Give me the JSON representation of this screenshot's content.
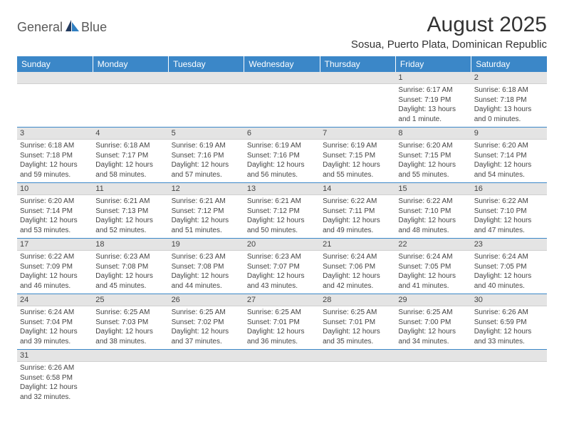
{
  "brand": {
    "name_part1": "General",
    "name_part2": "Blue"
  },
  "colors": {
    "header_bg": "#3b87c8",
    "header_text": "#ffffff",
    "daynum_bg": "#e4e4e4",
    "row_divider": "#3b87c8",
    "logo_dark": "#223a5e",
    "logo_blue": "#2f7fc2"
  },
  "title": "August 2025",
  "subtitle": "Sosua, Puerto Plata, Dominican Republic",
  "weekdays": [
    "Sunday",
    "Monday",
    "Tuesday",
    "Wednesday",
    "Thursday",
    "Friday",
    "Saturday"
  ],
  "first_weekday_index": 5,
  "days": [
    {
      "n": 1,
      "sunrise": "6:17 AM",
      "sunset": "7:19 PM",
      "daylight": "13 hours and 1 minute."
    },
    {
      "n": 2,
      "sunrise": "6:18 AM",
      "sunset": "7:18 PM",
      "daylight": "13 hours and 0 minutes."
    },
    {
      "n": 3,
      "sunrise": "6:18 AM",
      "sunset": "7:18 PM",
      "daylight": "12 hours and 59 minutes."
    },
    {
      "n": 4,
      "sunrise": "6:18 AM",
      "sunset": "7:17 PM",
      "daylight": "12 hours and 58 minutes."
    },
    {
      "n": 5,
      "sunrise": "6:19 AM",
      "sunset": "7:16 PM",
      "daylight": "12 hours and 57 minutes."
    },
    {
      "n": 6,
      "sunrise": "6:19 AM",
      "sunset": "7:16 PM",
      "daylight": "12 hours and 56 minutes."
    },
    {
      "n": 7,
      "sunrise": "6:19 AM",
      "sunset": "7:15 PM",
      "daylight": "12 hours and 55 minutes."
    },
    {
      "n": 8,
      "sunrise": "6:20 AM",
      "sunset": "7:15 PM",
      "daylight": "12 hours and 55 minutes."
    },
    {
      "n": 9,
      "sunrise": "6:20 AM",
      "sunset": "7:14 PM",
      "daylight": "12 hours and 54 minutes."
    },
    {
      "n": 10,
      "sunrise": "6:20 AM",
      "sunset": "7:14 PM",
      "daylight": "12 hours and 53 minutes."
    },
    {
      "n": 11,
      "sunrise": "6:21 AM",
      "sunset": "7:13 PM",
      "daylight": "12 hours and 52 minutes."
    },
    {
      "n": 12,
      "sunrise": "6:21 AM",
      "sunset": "7:12 PM",
      "daylight": "12 hours and 51 minutes."
    },
    {
      "n": 13,
      "sunrise": "6:21 AM",
      "sunset": "7:12 PM",
      "daylight": "12 hours and 50 minutes."
    },
    {
      "n": 14,
      "sunrise": "6:22 AM",
      "sunset": "7:11 PM",
      "daylight": "12 hours and 49 minutes."
    },
    {
      "n": 15,
      "sunrise": "6:22 AM",
      "sunset": "7:10 PM",
      "daylight": "12 hours and 48 minutes."
    },
    {
      "n": 16,
      "sunrise": "6:22 AM",
      "sunset": "7:10 PM",
      "daylight": "12 hours and 47 minutes."
    },
    {
      "n": 17,
      "sunrise": "6:22 AM",
      "sunset": "7:09 PM",
      "daylight": "12 hours and 46 minutes."
    },
    {
      "n": 18,
      "sunrise": "6:23 AM",
      "sunset": "7:08 PM",
      "daylight": "12 hours and 45 minutes."
    },
    {
      "n": 19,
      "sunrise": "6:23 AM",
      "sunset": "7:08 PM",
      "daylight": "12 hours and 44 minutes."
    },
    {
      "n": 20,
      "sunrise": "6:23 AM",
      "sunset": "7:07 PM",
      "daylight": "12 hours and 43 minutes."
    },
    {
      "n": 21,
      "sunrise": "6:24 AM",
      "sunset": "7:06 PM",
      "daylight": "12 hours and 42 minutes."
    },
    {
      "n": 22,
      "sunrise": "6:24 AM",
      "sunset": "7:05 PM",
      "daylight": "12 hours and 41 minutes."
    },
    {
      "n": 23,
      "sunrise": "6:24 AM",
      "sunset": "7:05 PM",
      "daylight": "12 hours and 40 minutes."
    },
    {
      "n": 24,
      "sunrise": "6:24 AM",
      "sunset": "7:04 PM",
      "daylight": "12 hours and 39 minutes."
    },
    {
      "n": 25,
      "sunrise": "6:25 AM",
      "sunset": "7:03 PM",
      "daylight": "12 hours and 38 minutes."
    },
    {
      "n": 26,
      "sunrise": "6:25 AM",
      "sunset": "7:02 PM",
      "daylight": "12 hours and 37 minutes."
    },
    {
      "n": 27,
      "sunrise": "6:25 AM",
      "sunset": "7:01 PM",
      "daylight": "12 hours and 36 minutes."
    },
    {
      "n": 28,
      "sunrise": "6:25 AM",
      "sunset": "7:01 PM",
      "daylight": "12 hours and 35 minutes."
    },
    {
      "n": 29,
      "sunrise": "6:25 AM",
      "sunset": "7:00 PM",
      "daylight": "12 hours and 34 minutes."
    },
    {
      "n": 30,
      "sunrise": "6:26 AM",
      "sunset": "6:59 PM",
      "daylight": "12 hours and 33 minutes."
    },
    {
      "n": 31,
      "sunrise": "6:26 AM",
      "sunset": "6:58 PM",
      "daylight": "12 hours and 32 minutes."
    }
  ],
  "labels": {
    "sunrise": "Sunrise:",
    "sunset": "Sunset:",
    "daylight": "Daylight:"
  }
}
